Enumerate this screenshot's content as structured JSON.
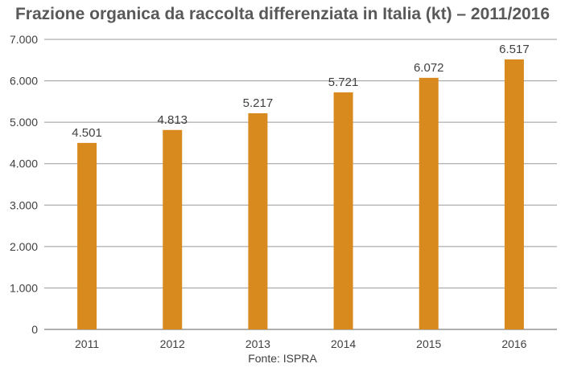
{
  "chart_data": {
    "type": "bar",
    "title": "Frazione organica da raccolta differenziata in Italia (kt) – 2011/2016",
    "categories": [
      "2011",
      "2012",
      "2013",
      "2014",
      "2015",
      "2016"
    ],
    "values": [
      4501,
      4813,
      5217,
      5721,
      6072,
      6517
    ],
    "value_labels": [
      "4.501",
      "4.813",
      "5.217",
      "5.721",
      "6.072",
      "6.517"
    ],
    "ylim": [
      0,
      7000
    ],
    "yticks": [
      0,
      1000,
      2000,
      3000,
      4000,
      5000,
      6000,
      7000
    ],
    "ytick_labels": [
      "0",
      "1.000",
      "2.000",
      "3.000",
      "4.000",
      "5.000",
      "6.000",
      "7.000"
    ],
    "xlabel": "",
    "ylabel": "",
    "grid": true,
    "bar_color": "#D98A1E",
    "source": "Fonte: ISPRA"
  }
}
